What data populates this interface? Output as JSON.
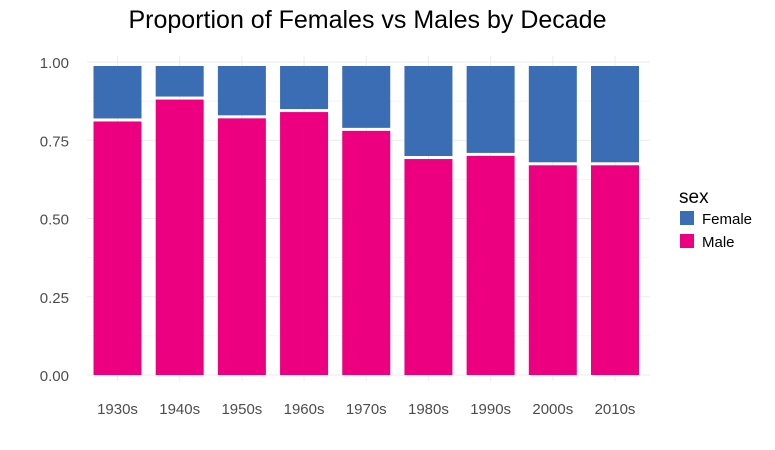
{
  "chart_data": {
    "type": "bar",
    "stacked": true,
    "title": "Proportion of Females vs Males by Decade",
    "xlabel": "",
    "ylabel": "",
    "categories": [
      "1930s",
      "1940s",
      "1950s",
      "1960s",
      "1970s",
      "1980s",
      "1990s",
      "2000s",
      "2010s"
    ],
    "series": [
      {
        "name": "Male",
        "color": "#ec0080",
        "values": [
          0.81,
          0.88,
          0.82,
          0.84,
          0.78,
          0.69,
          0.7,
          0.67,
          0.67
        ]
      },
      {
        "name": "Female",
        "color": "#3a6db3",
        "values": [
          0.19,
          0.12,
          0.18,
          0.16,
          0.22,
          0.31,
          0.3,
          0.33,
          0.33
        ]
      }
    ],
    "yticks": [
      "0.00",
      "0.25",
      "0.50",
      "0.75",
      "1.00"
    ],
    "ylim": [
      0,
      1
    ],
    "grid": true,
    "legend": {
      "title": "sex",
      "position": "right",
      "entries": [
        "Female",
        "Male"
      ]
    }
  }
}
